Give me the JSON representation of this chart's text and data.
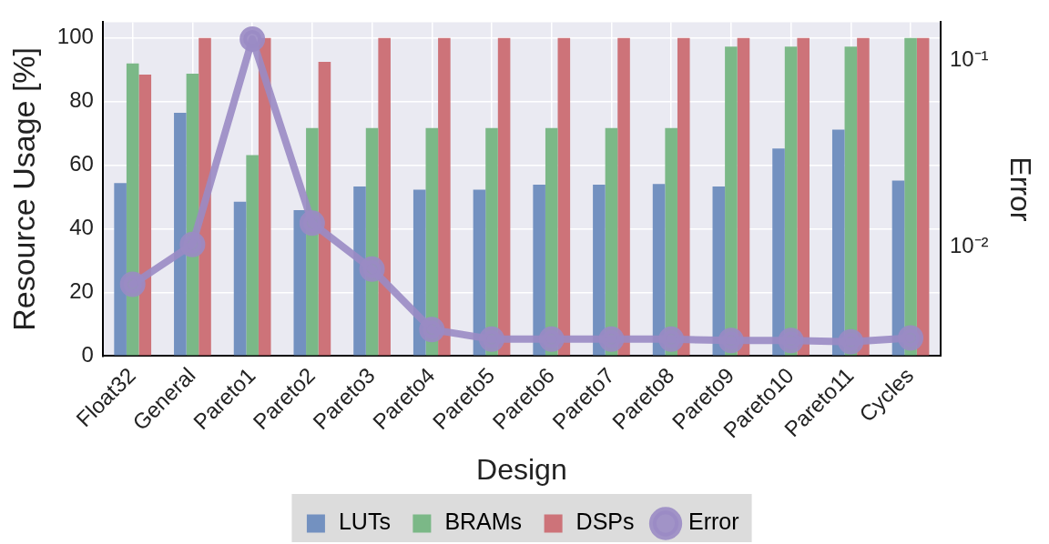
{
  "chart_data": {
    "type": "bar",
    "xlabel": "Design",
    "ylabel": "Resource Usage [%]",
    "y2label": "Error",
    "categories": [
      "Float32",
      "General",
      "Pareto1",
      "Pareto2",
      "Pareto3",
      "Pareto4",
      "Pareto5",
      "Pareto6",
      "Pareto7",
      "Pareto8",
      "Pareto9",
      "Pareto10",
      "Pareto11",
      "Cycles"
    ],
    "series": [
      {
        "name": "LUTs",
        "color": "#7391c0",
        "values": [
          54.4,
          76.5,
          48.5,
          45.9,
          53.3,
          52.3,
          52.3,
          53.9,
          53.9,
          54.1,
          53.3,
          65.3,
          71.2,
          55.2
        ]
      },
      {
        "name": "BRAMs",
        "color": "#7bb887",
        "values": [
          92,
          88.8,
          63.2,
          71.7,
          71.7,
          71.7,
          71.7,
          71.7,
          71.7,
          71.7,
          97.3,
          97.3,
          97.3,
          100
        ]
      },
      {
        "name": "DSPs",
        "color": "#cd7379",
        "values": [
          88.5,
          100,
          100,
          92.5,
          100,
          100,
          100,
          100,
          100,
          100,
          100,
          100,
          100,
          100
        ]
      },
      {
        "name": "Error",
        "type": "line",
        "axis": "y2",
        "color": "#9a8bc4",
        "values": [
          0.0063,
          0.0103,
          0.13,
          0.0134,
          0.0076,
          0.0036,
          0.0032,
          0.0032,
          0.0032,
          0.0032,
          0.00315,
          0.00315,
          0.0031,
          0.00325
        ]
      }
    ],
    "ylim": [
      0,
      105
    ],
    "yticks": [
      0,
      20,
      40,
      60,
      80,
      100
    ],
    "y2lim": [
      0.0026,
      0.16
    ],
    "y2ticks": [
      {
        "value": 0.01,
        "label": "10⁻²"
      },
      {
        "value": 0.1,
        "label": "10⁻¹"
      }
    ],
    "log": "y2",
    "grid": true,
    "legend": "bottom",
    "marker": "circle"
  }
}
